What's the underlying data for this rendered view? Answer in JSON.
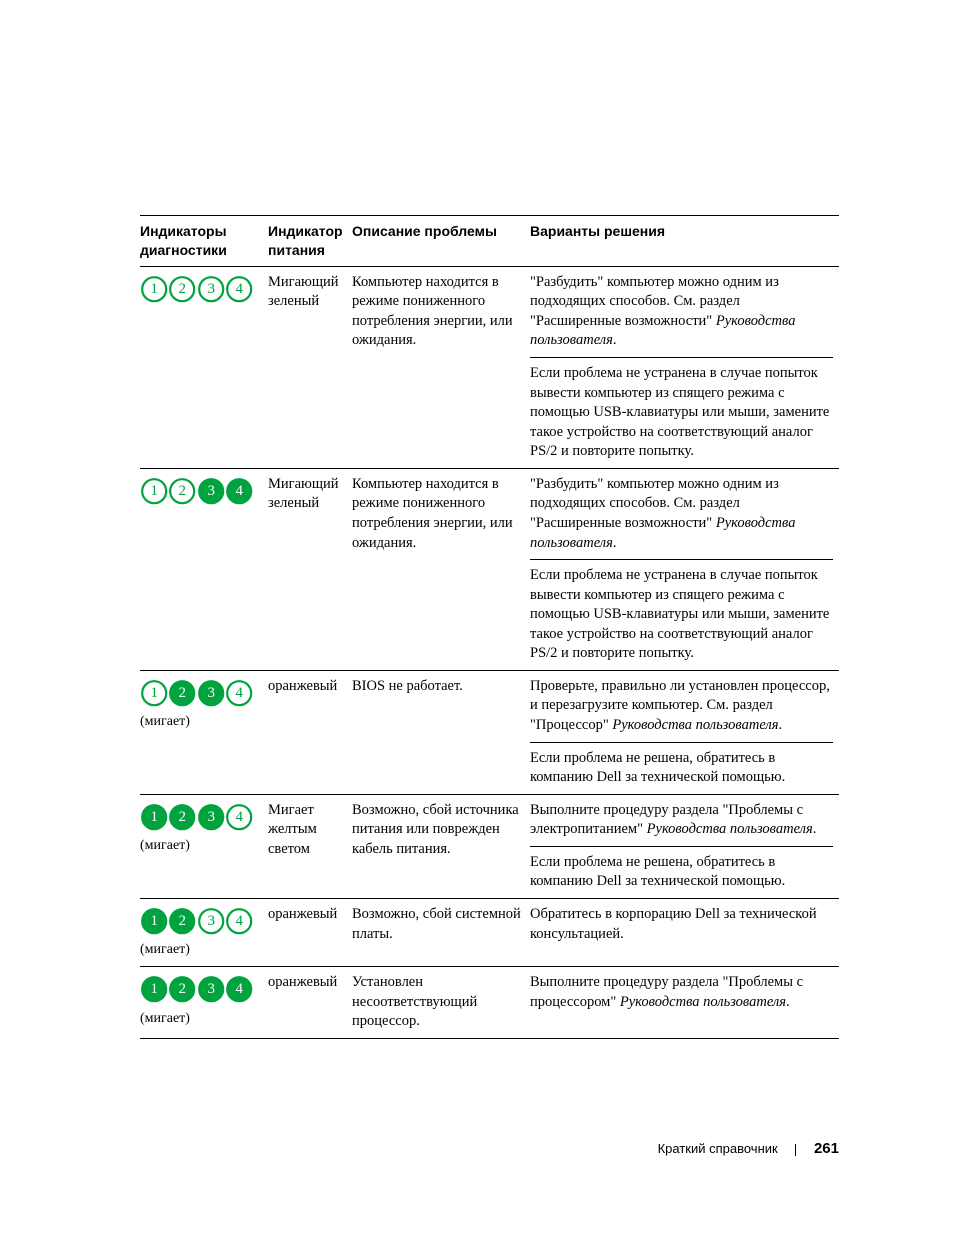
{
  "colors": {
    "green": "#00a33d",
    "black": "#000000",
    "white": "#ffffff",
    "text": "#000000",
    "border": "#000000"
  },
  "led": {
    "radius": 12,
    "stroke_width": 2.2,
    "font_size": 15,
    "font_family": "Times New Roman"
  },
  "headers": {
    "indicators_l1": "Индикаторы",
    "indicators_l2": "диагностики",
    "power_l1": "Индикатор",
    "power_l2": "питания",
    "description": "Описание проблемы",
    "solutions": "Варианты решения"
  },
  "rows": [
    {
      "leds": [
        "outline",
        "outline",
        "outline",
        "outline"
      ],
      "sub": "",
      "power": "Мигающий зеленый",
      "description": "Компьютер находится в режиме пониженного потребления энергии, или ожидания.",
      "solutions": [
        {
          "plain_pre": "\"Разбудить\" компьютер можно одним из подходящих способов. См. раздел \"Расширенные возможности\" ",
          "italic": "Руководства пользователя",
          "plain_post": "."
        },
        {
          "plain_pre": "Если проблема не устранена в случае попыток вывести компьютер из спящего режима с помощью USB-клавиатуры или мыши, замените такое устройство на соответствующий аналог PS/2 и повторите попытку.",
          "italic": "",
          "plain_post": ""
        }
      ]
    },
    {
      "leds": [
        "outline",
        "outline",
        "filled",
        "filled"
      ],
      "sub": "",
      "power": "Мигающий зеленый",
      "description": "Компьютер находится в режиме пониженного потребления энергии, или ожидания.",
      "solutions": [
        {
          "plain_pre": "\"Разбудить\" компьютер можно одним из подходящих способов. См. раздел \"Расширенные возможности\" ",
          "italic": "Руководства пользователя",
          "plain_post": "."
        },
        {
          "plain_pre": "Если проблема не устранена в случае попыток вывести компьютер из спящего режима с помощью USB-клавиатуры или мыши, замените такое устройство на соответствующий аналог PS/2 и повторите попытку.",
          "italic": "",
          "plain_post": ""
        }
      ]
    },
    {
      "leds": [
        "outline",
        "filled",
        "filled",
        "outline"
      ],
      "sub": "(мигает)",
      "power": "оранжевый",
      "description": "BIOS не работает.",
      "solutions": [
        {
          "plain_pre": "Проверьте, правильно ли установлен процессор, и перезагрузите компьютер. См. раздел \"Процессор\" ",
          "italic": "Руководства пользователя",
          "plain_post": "."
        },
        {
          "plain_pre": "Если проблема не решена, обратитесь в компанию Dell за технической помощью.",
          "italic": "",
          "plain_post": ""
        }
      ]
    },
    {
      "leds": [
        "filled",
        "filled",
        "filled",
        "outline"
      ],
      "sub": "(мигает)",
      "power": "Мигает желтым светом",
      "description": "Возможно, сбой источника питания или поврежден кабель питания.",
      "solutions": [
        {
          "plain_pre": "Выполните процедуру раздела \"Проблемы с электропитанием\" ",
          "italic": "Руководства пользователя",
          "plain_post": "."
        },
        {
          "plain_pre": "Если проблема не решена, обратитесь в компанию Dell за технической помощью.",
          "italic": "",
          "plain_post": ""
        }
      ]
    },
    {
      "leds": [
        "filled",
        "filled",
        "outline",
        "outline"
      ],
      "sub": "(мигает)",
      "power": "оранжевый",
      "description": "Возможно, сбой системной платы.",
      "solutions": [
        {
          "plain_pre": "Обратитесь в корпорацию Dell за технической консультацией.",
          "italic": "",
          "plain_post": ""
        }
      ]
    },
    {
      "leds": [
        "filled",
        "filled",
        "filled",
        "filled"
      ],
      "sub": "(мигает)",
      "power": "оранжевый",
      "description": "Установлен несоответствующий процессор.",
      "solutions": [
        {
          "plain_pre": "Выполните процедуру раздела \"Проблемы с процессором\" ",
          "italic": "Руководства пользователя",
          "plain_post": "."
        }
      ]
    }
  ],
  "footer": {
    "title": "Краткий справочник",
    "page": "261"
  }
}
